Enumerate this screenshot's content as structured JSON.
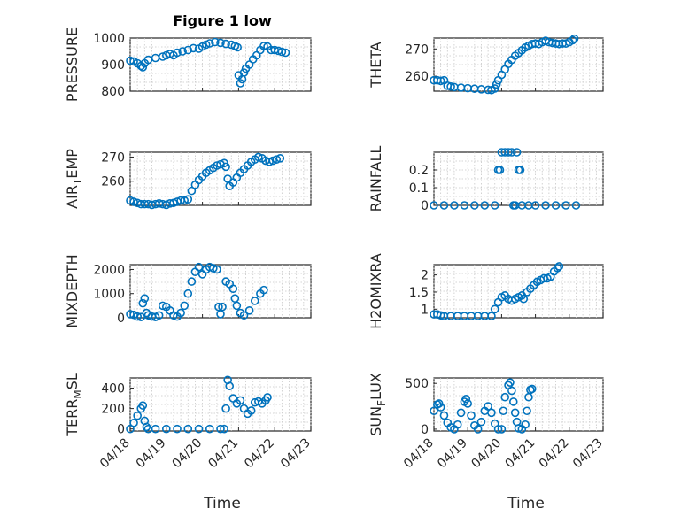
{
  "figure": {
    "title": "Figure 1 low",
    "xlabel": "Time"
  },
  "marker_color": "#0072BD",
  "chart_data": [
    {
      "type": "scatter",
      "id": "pressure",
      "ylabel": "PRESSURE",
      "ylim": [
        800,
        1000
      ],
      "yticks": [
        800,
        900,
        1000
      ],
      "grid": true,
      "points": [
        [
          0.0,
          915
        ],
        [
          0.1,
          912
        ],
        [
          0.2,
          905
        ],
        [
          0.3,
          895
        ],
        [
          0.35,
          890
        ],
        [
          0.4,
          905
        ],
        [
          0.5,
          918
        ],
        [
          0.7,
          925
        ],
        [
          0.9,
          930
        ],
        [
          1.0,
          935
        ],
        [
          1.1,
          940
        ],
        [
          1.2,
          935
        ],
        [
          1.3,
          945
        ],
        [
          1.45,
          950
        ],
        [
          1.6,
          955
        ],
        [
          1.75,
          962
        ],
        [
          1.9,
          960
        ],
        [
          2.0,
          968
        ],
        [
          2.1,
          975
        ],
        [
          2.2,
          980
        ],
        [
          2.35,
          985
        ],
        [
          2.5,
          982
        ],
        [
          2.65,
          978
        ],
        [
          2.8,
          975
        ],
        [
          2.9,
          970
        ],
        [
          2.97,
          965
        ],
        [
          3.0,
          860
        ],
        [
          3.05,
          830
        ],
        [
          3.1,
          845
        ],
        [
          3.15,
          870
        ],
        [
          3.2,
          885
        ],
        [
          3.3,
          900
        ],
        [
          3.4,
          920
        ],
        [
          3.5,
          935
        ],
        [
          3.6,
          955
        ],
        [
          3.7,
          970
        ],
        [
          3.8,
          968
        ],
        [
          3.9,
          955
        ],
        [
          4.0,
          955
        ],
        [
          4.1,
          952
        ],
        [
          4.2,
          948
        ],
        [
          4.3,
          945
        ]
      ]
    },
    {
      "type": "scatter",
      "id": "theta",
      "ylabel": "THETA",
      "ylim": [
        254.5,
        274
      ],
      "yticks": [
        260,
        270
      ],
      "grid": true,
      "points": [
        [
          0.0,
          258.5
        ],
        [
          0.1,
          258.5
        ],
        [
          0.2,
          258.3
        ],
        [
          0.3,
          258.5
        ],
        [
          0.4,
          256.5
        ],
        [
          0.5,
          256.2
        ],
        [
          0.6,
          256.0
        ],
        [
          0.8,
          255.8
        ],
        [
          1.0,
          255.6
        ],
        [
          1.2,
          255.4
        ],
        [
          1.4,
          255.2
        ],
        [
          1.6,
          255.0
        ],
        [
          1.7,
          254.9
        ],
        [
          1.8,
          255.5
        ],
        [
          1.85,
          257.0
        ],
        [
          1.9,
          258.5
        ],
        [
          2.0,
          260.5
        ],
        [
          2.1,
          262.5
        ],
        [
          2.2,
          264.5
        ],
        [
          2.3,
          266.0
        ],
        [
          2.4,
          267.5
        ],
        [
          2.5,
          268.5
        ],
        [
          2.6,
          269.5
        ],
        [
          2.7,
          270.5
        ],
        [
          2.8,
          271.2
        ],
        [
          2.9,
          271.8
        ],
        [
          3.0,
          272.0
        ],
        [
          3.1,
          271.8
        ],
        [
          3.2,
          272.5
        ],
        [
          3.3,
          273.0
        ],
        [
          3.4,
          272.5
        ],
        [
          3.5,
          272.2
        ],
        [
          3.6,
          272.0
        ],
        [
          3.7,
          271.8
        ],
        [
          3.8,
          272.0
        ],
        [
          3.9,
          272.0
        ],
        [
          4.0,
          272.5
        ],
        [
          4.1,
          273.2
        ],
        [
          4.15,
          273.8
        ]
      ]
    },
    {
      "type": "scatter",
      "id": "air_temp",
      "ylabel": "AIR_TEMP",
      "ylabel_parts": [
        "AIR",
        "T",
        "EMP"
      ],
      "ylim": [
        250,
        272
      ],
      "yticks": [
        260,
        270
      ],
      "grid": true,
      "points": [
        [
          0.0,
          252
        ],
        [
          0.1,
          251.5
        ],
        [
          0.2,
          251
        ],
        [
          0.3,
          250.5
        ],
        [
          0.4,
          250.5
        ],
        [
          0.5,
          250.5
        ],
        [
          0.6,
          250.2
        ],
        [
          0.7,
          250.5
        ],
        [
          0.8,
          250.8
        ],
        [
          0.9,
          250.5
        ],
        [
          1.0,
          250.2
        ],
        [
          1.1,
          250.8
        ],
        [
          1.2,
          251.0
        ],
        [
          1.3,
          251.5
        ],
        [
          1.4,
          252.0
        ],
        [
          1.5,
          252.0
        ],
        [
          1.6,
          252.5
        ],
        [
          1.7,
          256.0
        ],
        [
          1.8,
          258.5
        ],
        [
          1.9,
          260.5
        ],
        [
          2.0,
          262.0
        ],
        [
          2.1,
          263.5
        ],
        [
          2.2,
          264.5
        ],
        [
          2.3,
          265.5
        ],
        [
          2.4,
          266.5
        ],
        [
          2.5,
          267.0
        ],
        [
          2.6,
          267.5
        ],
        [
          2.65,
          266.0
        ],
        [
          2.7,
          261.0
        ],
        [
          2.75,
          258.0
        ],
        [
          2.85,
          259.5
        ],
        [
          2.95,
          261.5
        ],
        [
          3.05,
          263.5
        ],
        [
          3.15,
          265.0
        ],
        [
          3.25,
          266.5
        ],
        [
          3.35,
          268.0
        ],
        [
          3.45,
          269.0
        ],
        [
          3.55,
          270.0
        ],
        [
          3.65,
          269.5
        ],
        [
          3.75,
          268.5
        ],
        [
          3.85,
          268.0
        ],
        [
          3.95,
          268.5
        ],
        [
          4.05,
          269.0
        ],
        [
          4.15,
          269.5
        ]
      ]
    },
    {
      "type": "scatter",
      "id": "rainfall",
      "ylabel": "RAINFALL",
      "ylim": [
        0,
        0.3
      ],
      "yticks": [
        0,
        0.1,
        0.2
      ],
      "grid": true,
      "points": [
        [
          0.0,
          0
        ],
        [
          0.3,
          0
        ],
        [
          0.6,
          0
        ],
        [
          0.9,
          0
        ],
        [
          1.2,
          0
        ],
        [
          1.5,
          0
        ],
        [
          1.8,
          0
        ],
        [
          1.9,
          0.2
        ],
        [
          1.95,
          0.2
        ],
        [
          2.0,
          0.3
        ],
        [
          2.1,
          0.3
        ],
        [
          2.2,
          0.3
        ],
        [
          2.3,
          0.3
        ],
        [
          2.35,
          0
        ],
        [
          2.4,
          0
        ],
        [
          2.45,
          0.3
        ],
        [
          2.5,
          0.2
        ],
        [
          2.55,
          0.2
        ],
        [
          2.6,
          0
        ],
        [
          2.8,
          0
        ],
        [
          3.0,
          0
        ],
        [
          3.3,
          0
        ],
        [
          3.6,
          0
        ],
        [
          3.9,
          0
        ],
        [
          4.2,
          0
        ]
      ]
    },
    {
      "type": "scatter",
      "id": "mixdepth",
      "ylabel": "MIXDEPTH",
      "ylim": [
        0,
        2200
      ],
      "yticks": [
        0,
        1000,
        2000
      ],
      "grid": true,
      "points": [
        [
          0.0,
          150
        ],
        [
          0.1,
          120
        ],
        [
          0.2,
          50
        ],
        [
          0.3,
          30
        ],
        [
          0.35,
          600
        ],
        [
          0.4,
          800
        ],
        [
          0.45,
          200
        ],
        [
          0.5,
          100
        ],
        [
          0.6,
          50
        ],
        [
          0.7,
          30
        ],
        [
          0.8,
          100
        ],
        [
          0.9,
          500
        ],
        [
          1.0,
          450
        ],
        [
          1.1,
          300
        ],
        [
          1.2,
          100
        ],
        [
          1.3,
          50
        ],
        [
          1.4,
          200
        ],
        [
          1.5,
          500
        ],
        [
          1.6,
          1000
        ],
        [
          1.7,
          1500
        ],
        [
          1.8,
          1900
        ],
        [
          1.9,
          2100
        ],
        [
          2.0,
          1800
        ],
        [
          2.1,
          2000
        ],
        [
          2.2,
          2100
        ],
        [
          2.3,
          2050
        ],
        [
          2.4,
          2000
        ],
        [
          2.45,
          450
        ],
        [
          2.5,
          150
        ],
        [
          2.55,
          450
        ],
        [
          2.65,
          1500
        ],
        [
          2.75,
          1400
        ],
        [
          2.85,
          1200
        ],
        [
          2.9,
          800
        ],
        [
          2.95,
          500
        ],
        [
          3.05,
          200
        ],
        [
          3.15,
          100
        ],
        [
          3.3,
          300
        ],
        [
          3.45,
          700
        ],
        [
          3.6,
          1000
        ],
        [
          3.7,
          1150
        ]
      ]
    },
    {
      "type": "scatter",
      "id": "h2omixra",
      "ylabel": "H2OMIXRA",
      "ylim": [
        0.75,
        2.3
      ],
      "yticks": [
        1,
        1.5,
        2
      ],
      "grid": true,
      "points": [
        [
          0.0,
          0.85
        ],
        [
          0.1,
          0.85
        ],
        [
          0.2,
          0.82
        ],
        [
          0.3,
          0.8
        ],
        [
          0.5,
          0.8
        ],
        [
          0.7,
          0.8
        ],
        [
          0.9,
          0.8
        ],
        [
          1.1,
          0.8
        ],
        [
          1.3,
          0.8
        ],
        [
          1.5,
          0.8
        ],
        [
          1.7,
          0.8
        ],
        [
          1.8,
          1.0
        ],
        [
          1.9,
          1.2
        ],
        [
          2.0,
          1.35
        ],
        [
          2.1,
          1.4
        ],
        [
          2.2,
          1.3
        ],
        [
          2.3,
          1.25
        ],
        [
          2.4,
          1.3
        ],
        [
          2.5,
          1.35
        ],
        [
          2.6,
          1.4
        ],
        [
          2.65,
          1.3
        ],
        [
          2.75,
          1.5
        ],
        [
          2.85,
          1.6
        ],
        [
          2.95,
          1.7
        ],
        [
          3.05,
          1.8
        ],
        [
          3.15,
          1.85
        ],
        [
          3.25,
          1.9
        ],
        [
          3.35,
          1.9
        ],
        [
          3.45,
          1.95
        ],
        [
          3.55,
          2.1
        ],
        [
          3.65,
          2.2
        ],
        [
          3.7,
          2.25
        ]
      ]
    },
    {
      "type": "scatter",
      "id": "terr_msl",
      "ylabel": "TERR_MSL",
      "ylabel_parts": [
        "TERR",
        "M",
        "SL"
      ],
      "ylim": [
        -20,
        500
      ],
      "yticks": [
        0,
        200,
        400
      ],
      "grid": true,
      "points": [
        [
          0.0,
          0
        ],
        [
          0.1,
          60
        ],
        [
          0.2,
          130
        ],
        [
          0.3,
          200
        ],
        [
          0.35,
          230
        ],
        [
          0.4,
          80
        ],
        [
          0.45,
          20
        ],
        [
          0.5,
          0
        ],
        [
          0.7,
          0
        ],
        [
          1.0,
          0
        ],
        [
          1.3,
          0
        ],
        [
          1.6,
          0
        ],
        [
          1.9,
          0
        ],
        [
          2.2,
          0
        ],
        [
          2.5,
          0
        ],
        [
          2.6,
          0
        ],
        [
          2.65,
          200
        ],
        [
          2.7,
          480
        ],
        [
          2.75,
          420
        ],
        [
          2.85,
          300
        ],
        [
          2.95,
          250
        ],
        [
          3.05,
          280
        ],
        [
          3.15,
          200
        ],
        [
          3.25,
          150
        ],
        [
          3.35,
          180
        ],
        [
          3.45,
          260
        ],
        [
          3.55,
          270
        ],
        [
          3.65,
          250
        ],
        [
          3.75,
          280
        ],
        [
          3.8,
          310
        ]
      ]
    },
    {
      "type": "scatter",
      "id": "sun_flux",
      "ylabel": "SUN_FLUX",
      "ylabel_parts": [
        "SUN",
        "F",
        "LUX"
      ],
      "ylim": [
        -20,
        560
      ],
      "yticks": [
        0,
        500
      ],
      "grid": true,
      "points": [
        [
          0.0,
          200
        ],
        [
          0.1,
          270
        ],
        [
          0.15,
          280
        ],
        [
          0.2,
          240
        ],
        [
          0.3,
          150
        ],
        [
          0.4,
          70
        ],
        [
          0.5,
          20
        ],
        [
          0.6,
          0
        ],
        [
          0.7,
          50
        ],
        [
          0.8,
          180
        ],
        [
          0.9,
          300
        ],
        [
          0.95,
          330
        ],
        [
          1.0,
          280
        ],
        [
          1.1,
          150
        ],
        [
          1.2,
          40
        ],
        [
          1.3,
          0
        ],
        [
          1.4,
          80
        ],
        [
          1.5,
          200
        ],
        [
          1.6,
          250
        ],
        [
          1.7,
          180
        ],
        [
          1.8,
          60
        ],
        [
          1.9,
          0
        ],
        [
          2.0,
          0
        ],
        [
          2.05,
          200
        ],
        [
          2.1,
          350
        ],
        [
          2.2,
          480
        ],
        [
          2.25,
          510
        ],
        [
          2.3,
          420
        ],
        [
          2.35,
          300
        ],
        [
          2.4,
          180
        ],
        [
          2.45,
          80
        ],
        [
          2.5,
          10
        ],
        [
          2.6,
          0
        ],
        [
          2.7,
          50
        ],
        [
          2.75,
          200
        ],
        [
          2.8,
          350
        ],
        [
          2.85,
          430
        ],
        [
          2.9,
          440
        ]
      ]
    }
  ],
  "xaxis": {
    "ticks": [
      "04/18",
      "04/19",
      "04/20",
      "04/21",
      "04/22",
      "04/23"
    ]
  }
}
